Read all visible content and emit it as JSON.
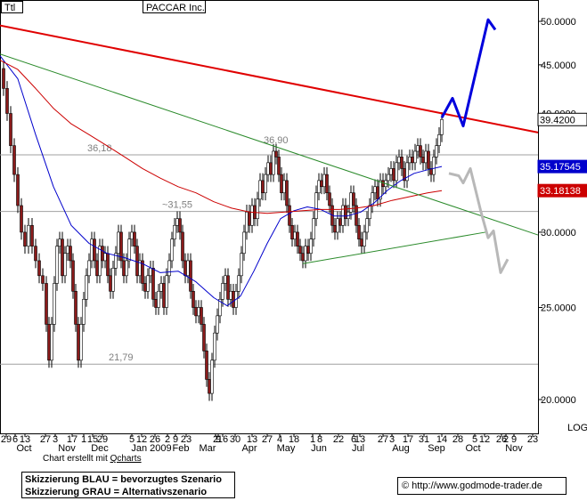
{
  "chart_data": {
    "type": "candlestick",
    "symbol_box": "Ttl",
    "title": "PACCAR Inc.",
    "y_axis": {
      "ticks": [
        "20.0000",
        "25.0000",
        "30.0000",
        "35.0000",
        "40.0000",
        "45.0000",
        "50.0000"
      ],
      "tick_values": [
        20,
        25,
        30,
        35,
        40,
        45,
        50
      ],
      "range": [
        19,
        52
      ],
      "scale_label": "LOG"
    },
    "x_axis": {
      "day_ticks": [
        "29",
        "6",
        "13",
        "27",
        "3",
        "17",
        "1",
        "15",
        "29",
        "5",
        "12",
        "26",
        "2",
        "9",
        "23",
        "2",
        "9",
        "16",
        "30",
        "13",
        "27",
        "4",
        "18",
        "1",
        "8",
        "22",
        "6",
        "13",
        "27",
        "3",
        "17",
        "31",
        "14",
        "28",
        "5",
        "12",
        "26",
        "2",
        "9",
        "23"
      ],
      "month_labels": [
        "Oct",
        "Nov",
        "Dec",
        "Jan 2009",
        "Feb",
        "Mar",
        "Apr",
        "May",
        "Jun",
        "Jul",
        "Aug",
        "Sep",
        "Oct",
        "Nov"
      ]
    },
    "price_badges": [
      {
        "label": "39.4200",
        "value": 39.42,
        "bg": "#ffffff",
        "fg": "#000000",
        "border": "#000000"
      },
      {
        "label": "35.17545",
        "value": 35.17545,
        "bg": "#0000cc",
        "fg": "#ffffff"
      },
      {
        "label": "33.18138",
        "value": 33.18138,
        "bg": "#cc0000",
        "fg": "#ffffff"
      }
    ],
    "horizontal_levels": [
      {
        "label": "36,90",
        "value": 36.9
      },
      {
        "label": "36,18",
        "value": 36.18
      },
      {
        "label": "~31,55",
        "value": 31.55
      },
      {
        "label": "21,79",
        "value": 21.79
      }
    ],
    "series": [
      {
        "name": "close",
        "color": "#8b1a1a",
        "points": [
          [
            0,
            44.6
          ],
          [
            4,
            42.5
          ],
          [
            8,
            40
          ],
          [
            12,
            37
          ],
          [
            16,
            34.5
          ],
          [
            20,
            32
          ],
          [
            24,
            30
          ],
          [
            28,
            29
          ],
          [
            32,
            30.5
          ],
          [
            36,
            29
          ],
          [
            40,
            28
          ],
          [
            44,
            27
          ],
          [
            48,
            26.5
          ],
          [
            52,
            24
          ],
          [
            55,
            22
          ],
          [
            58,
            24
          ],
          [
            61,
            26.5
          ],
          [
            64,
            29
          ],
          [
            67,
            29.5
          ],
          [
            70,
            27
          ],
          [
            73,
            28.5
          ],
          [
            76,
            29
          ],
          [
            79,
            28
          ],
          [
            82,
            26
          ],
          [
            85,
            24
          ],
          [
            88,
            22
          ],
          [
            91,
            24
          ],
          [
            94,
            25.5
          ],
          [
            97,
            27
          ],
          [
            100,
            28
          ],
          [
            103,
            29.5
          ],
          [
            106,
            28
          ],
          [
            109,
            27
          ],
          [
            112,
            29
          ],
          [
            115,
            28
          ],
          [
            118,
            28.5
          ],
          [
            121,
            27
          ],
          [
            124,
            26
          ],
          [
            127,
            27.5
          ],
          [
            130,
            28.5
          ],
          [
            133,
            30
          ],
          [
            136,
            28
          ],
          [
            139,
            27
          ],
          [
            142,
            28
          ],
          [
            145,
            29.5
          ],
          [
            148,
            30
          ],
          [
            151,
            29
          ],
          [
            154,
            27
          ],
          [
            157,
            28
          ],
          [
            160,
            26.5
          ],
          [
            163,
            26
          ],
          [
            166,
            27
          ],
          [
            169,
            27.5
          ],
          [
            172,
            25.5
          ],
          [
            175,
            25
          ],
          [
            178,
            26
          ],
          [
            181,
            26.5
          ],
          [
            184,
            25
          ],
          [
            187,
            27
          ],
          [
            190,
            28
          ],
          [
            193,
            29.5
          ],
          [
            196,
            30.5
          ],
          [
            199,
            31
          ],
          [
            202,
            30
          ],
          [
            205,
            28
          ],
          [
            208,
            27
          ],
          [
            211,
            28
          ],
          [
            214,
            26
          ],
          [
            217,
            25
          ],
          [
            220,
            24.5
          ],
          [
            223,
            25
          ],
          [
            226,
            24
          ],
          [
            229,
            22.5
          ],
          [
            232,
            21
          ],
          [
            235,
            20.3
          ],
          [
            238,
            22
          ],
          [
            241,
            23.5
          ],
          [
            244,
            24.5
          ],
          [
            247,
            25.5
          ],
          [
            250,
            26.5
          ],
          [
            253,
            27
          ],
          [
            256,
            25.5
          ],
          [
            259,
            26
          ],
          [
            262,
            25
          ],
          [
            265,
            26
          ],
          [
            268,
            27
          ],
          [
            271,
            28.5
          ],
          [
            274,
            30
          ],
          [
            277,
            31.5
          ],
          [
            280,
            30.5
          ],
          [
            283,
            32
          ],
          [
            286,
            31
          ],
          [
            289,
            32.5
          ],
          [
            292,
            34
          ],
          [
            295,
            33
          ],
          [
            298,
            34.5
          ],
          [
            301,
            35.5
          ],
          [
            304,
            34.5
          ],
          [
            307,
            36.5
          ],
          [
            310,
            36
          ],
          [
            313,
            34.5
          ],
          [
            316,
            33
          ],
          [
            319,
            34
          ],
          [
            322,
            32
          ],
          [
            325,
            30.5
          ],
          [
            328,
            29.5
          ],
          [
            331,
            30
          ],
          [
            334,
            29
          ],
          [
            337,
            28.5
          ],
          [
            340,
            28
          ],
          [
            343,
            29
          ],
          [
            346,
            28.5
          ],
          [
            349,
            29.5
          ],
          [
            352,
            31
          ],
          [
            355,
            33
          ],
          [
            358,
            34
          ],
          [
            361,
            33.5
          ],
          [
            364,
            34.5
          ],
          [
            367,
            33
          ],
          [
            370,
            32
          ],
          [
            373,
            30.5
          ],
          [
            376,
            30
          ],
          [
            379,
            31
          ],
          [
            382,
            30.5
          ],
          [
            385,
            32
          ],
          [
            388,
            31
          ],
          [
            391,
            31.5
          ],
          [
            394,
            33
          ],
          [
            397,
            32
          ],
          [
            400,
            30.5
          ],
          [
            403,
            29.5
          ],
          [
            406,
            29
          ],
          [
            409,
            30
          ],
          [
            412,
            31
          ],
          [
            415,
            32
          ],
          [
            418,
            33
          ],
          [
            421,
            33.5
          ],
          [
            424,
            32.5
          ],
          [
            427,
            34
          ],
          [
            430,
            33.5
          ],
          [
            433,
            34
          ],
          [
            436,
            34.5
          ],
          [
            439,
            35
          ],
          [
            442,
            34
          ],
          [
            445,
            35.5
          ],
          [
            448,
            36
          ],
          [
            451,
            35
          ],
          [
            454,
            34
          ],
          [
            457,
            35.5
          ],
          [
            460,
            36
          ],
          [
            463,
            35.5
          ],
          [
            466,
            36.5
          ],
          [
            469,
            37
          ],
          [
            472,
            36
          ],
          [
            475,
            35.5
          ],
          [
            478,
            36.5
          ],
          [
            481,
            35
          ],
          [
            484,
            34.5
          ],
          [
            487,
            36
          ],
          [
            490,
            37
          ],
          [
            493,
            38
          ],
          [
            496,
            39.42
          ]
        ]
      },
      {
        "name": "ma_blue",
        "color": "#0000cc",
        "points": [
          [
            0,
            46
          ],
          [
            20,
            43.5
          ],
          [
            40,
            38
          ],
          [
            60,
            33.5
          ],
          [
            80,
            30.5
          ],
          [
            100,
            29.2
          ],
          [
            120,
            28.5
          ],
          [
            140,
            28.2
          ],
          [
            160,
            27.8
          ],
          [
            180,
            27.2
          ],
          [
            200,
            27.3
          ],
          [
            220,
            26.6
          ],
          [
            240,
            25.6
          ],
          [
            255,
            25.1
          ],
          [
            270,
            25.7
          ],
          [
            285,
            27.3
          ],
          [
            300,
            29.2
          ],
          [
            315,
            31
          ],
          [
            330,
            31.6
          ],
          [
            345,
            31.9
          ],
          [
            360,
            31.7
          ],
          [
            375,
            31.2
          ],
          [
            390,
            31.2
          ],
          [
            405,
            31.5
          ],
          [
            420,
            32.2
          ],
          [
            435,
            33.2
          ],
          [
            450,
            34
          ],
          [
            465,
            34.6
          ],
          [
            480,
            34.9
          ],
          [
            496,
            35.17545
          ]
        ]
      },
      {
        "name": "ma_red",
        "color": "#cc0000",
        "points": [
          [
            0,
            45.5
          ],
          [
            20,
            44.5
          ],
          [
            40,
            42.5
          ],
          [
            60,
            40.5
          ],
          [
            80,
            39
          ],
          [
            100,
            38
          ],
          [
            120,
            37
          ],
          [
            140,
            36
          ],
          [
            160,
            35
          ],
          [
            180,
            34.2
          ],
          [
            200,
            33.5
          ],
          [
            220,
            33
          ],
          [
            240,
            32.3
          ],
          [
            260,
            31.8
          ],
          [
            280,
            31.5
          ],
          [
            300,
            31.4
          ],
          [
            320,
            31.5
          ],
          [
            340,
            31.6
          ],
          [
            360,
            31.7
          ],
          [
            380,
            31.7
          ],
          [
            400,
            31.8
          ],
          [
            420,
            32
          ],
          [
            440,
            32.4
          ],
          [
            460,
            32.7
          ],
          [
            480,
            33
          ],
          [
            496,
            33.18138
          ]
        ]
      }
    ],
    "trendlines": [
      {
        "color": "#e00000",
        "from": [
          0,
          49.5
        ],
        "to": [
          604,
          38.2
        ]
      },
      {
        "color": "#2a8a2a",
        "from": [
          0,
          46.2
        ],
        "to": [
          604,
          29.8
        ]
      },
      {
        "color": "#2a8a2a",
        "from": [
          340,
          27.8
        ],
        "to": [
          545,
          30.0
        ]
      }
    ],
    "scenarios": [
      {
        "name": "blau",
        "color": "#0000dd",
        "points": [
          [
            496,
            39.6
          ],
          [
            508,
            41.5
          ],
          [
            520,
            38.8
          ],
          [
            548,
            50.2
          ],
          [
            556,
            49
          ]
        ]
      },
      {
        "name": "grau",
        "color": "#b8b8b8",
        "points": [
          [
            504,
            34.6
          ],
          [
            515,
            34.4
          ],
          [
            520,
            33.8
          ],
          [
            528,
            35
          ],
          [
            540,
            31.5
          ],
          [
            548,
            29.6
          ],
          [
            554,
            30.1
          ],
          [
            562,
            27.2
          ],
          [
            570,
            28.1
          ]
        ]
      }
    ]
  },
  "footer": {
    "credit_prefix": "Chart erstellt mit ",
    "credit_link": "Qcharts",
    "legend_line1": "Skizzierung BLAU = bevorzugtes Szenario",
    "legend_line2": "Skizzierung GRAU = Alternativszenario",
    "source_text": "http://www.godmode-trader.de",
    "source_icon": "copyright-icon"
  }
}
